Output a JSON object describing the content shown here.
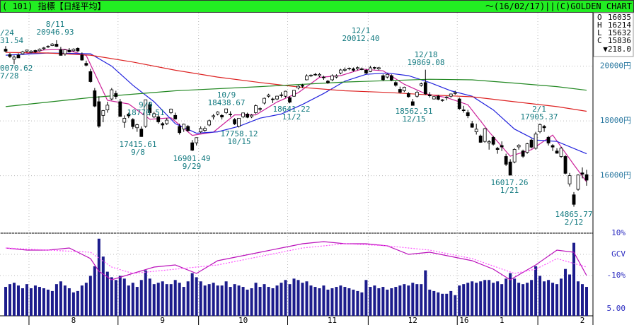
{
  "header": {
    "left": "( 101) 指標【日経平均】",
    "right": "～(16/02/17)||(C)GOLDEN CHART"
  },
  "chart_data": {
    "type": "candlestick",
    "ylim": [
      13900,
      21950
    ],
    "yticks": [
      {
        "value": 16000,
        "label": "16000円"
      },
      {
        "value": 18000,
        "label": "18000円"
      },
      {
        "value": 20000,
        "label": "20000円"
      }
    ],
    "grid": true,
    "month_starts": [
      6,
      27,
      46,
      67,
      86,
      107,
      126
    ],
    "month_labels": [
      "8",
      "9",
      "10",
      "11",
      "12",
      "1",
      "2"
    ],
    "year_label": "16",
    "summary": [
      {
        "label": "O",
        "value": 16035
      },
      {
        "label": "H",
        "value": 16214
      },
      {
        "label": "L",
        "value": 15632
      },
      {
        "label": "C",
        "value": 15836
      }
    ],
    "change": "▼218.0",
    "ohlc": [
      [
        20620,
        20731,
        20500,
        20544
      ],
      [
        20420,
        20480,
        20300,
        20350
      ],
      [
        20250,
        20390,
        20070,
        20328
      ],
      [
        20400,
        20470,
        20350,
        20302
      ],
      [
        20450,
        20560,
        20420,
        20522
      ],
      [
        20540,
        20600,
        20500,
        20585
      ],
      [
        20500,
        20580,
        20470,
        20548
      ],
      [
        20570,
        20600,
        20480,
        20520
      ],
      [
        20560,
        20650,
        20520,
        20614
      ],
      [
        20650,
        20700,
        20580,
        20664
      ],
      [
        20700,
        20760,
        20660,
        20724
      ],
      [
        20750,
        20840,
        20730,
        20808
      ],
      [
        20800,
        20946,
        20700,
        20720
      ],
      [
        20600,
        20700,
        20400,
        20392
      ],
      [
        20450,
        20600,
        20380,
        20595
      ],
      [
        20580,
        20660,
        20500,
        20519
      ],
      [
        20560,
        20650,
        20520,
        20620
      ],
      [
        20650,
        20680,
        20520,
        20554
      ],
      [
        20400,
        20500,
        20200,
        20222
      ],
      [
        20100,
        20200,
        19990,
        20033
      ],
      [
        19800,
        19900,
        19400,
        19435
      ],
      [
        19100,
        19200,
        18500,
        18540
      ],
      [
        18700,
        18900,
        17750,
        17806
      ],
      [
        18200,
        18400,
        17950,
        18376
      ],
      [
        18400,
        18700,
        18300,
        18574
      ],
      [
        18800,
        19200,
        18750,
        19136
      ],
      [
        19000,
        19100,
        18800,
        18890
      ],
      [
        18700,
        18800,
        18150,
        18165
      ],
      [
        17950,
        18200,
        17750,
        18095
      ],
      [
        18250,
        18300,
        18100,
        18182
      ],
      [
        18050,
        18100,
        17700,
        17792
      ],
      [
        17750,
        17900,
        17600,
        17860
      ],
      [
        17700,
        17800,
        17416,
        17427
      ],
      [
        17800,
        18771,
        17750,
        18770
      ],
      [
        18600,
        18700,
        18200,
        18299
      ],
      [
        18150,
        18330,
        18100,
        18264
      ],
      [
        18150,
        18250,
        17900,
        17965
      ],
      [
        17900,
        17950,
        17700,
        17849
      ],
      [
        17900,
        18100,
        17850,
        18026
      ],
      [
        18300,
        18450,
        18250,
        18432
      ],
      [
        18200,
        18300,
        18050,
        18070
      ],
      [
        17800,
        17900,
        17500,
        17571
      ],
      [
        17700,
        17900,
        17600,
        17880
      ],
      [
        17800,
        17850,
        17600,
        17645
      ],
      [
        17200,
        17300,
        16901,
        16930
      ],
      [
        17200,
        17400,
        17100,
        17388
      ],
      [
        17600,
        17800,
        17550,
        17722
      ],
      [
        17650,
        17800,
        17600,
        17725
      ],
      [
        17850,
        18050,
        17800,
        18005
      ],
      [
        18150,
        18250,
        18050,
        18186
      ],
      [
        18250,
        18350,
        18200,
        18322
      ],
      [
        18200,
        18250,
        18050,
        18141
      ],
      [
        18300,
        18439,
        18250,
        18438
      ],
      [
        18250,
        18350,
        18150,
        18234
      ],
      [
        18050,
        18100,
        17850,
        17891
      ],
      [
        17800,
        18100,
        17758,
        18096
      ],
      [
        18150,
        18300,
        18100,
        18291
      ],
      [
        18250,
        18300,
        18100,
        18131
      ],
      [
        18150,
        18250,
        18100,
        18207
      ],
      [
        18300,
        18600,
        18250,
        18554
      ],
      [
        18450,
        18500,
        18350,
        18435
      ],
      [
        18650,
        18850,
        18600,
        18825
      ],
      [
        18900,
        18990,
        18850,
        18947
      ],
      [
        18800,
        18850,
        18650,
        18777
      ],
      [
        18800,
        18920,
        18750,
        18903
      ],
      [
        18950,
        19050,
        18850,
        18935
      ],
      [
        18900,
        19100,
        18850,
        19083
      ],
      [
        18850,
        18900,
        18641,
        18683
      ],
      [
        18900,
        19130,
        18880,
        19116
      ],
      [
        19200,
        19300,
        19150,
        19265
      ],
      [
        19300,
        19350,
        19200,
        19265
      ],
      [
        19500,
        19700,
        19480,
        19642
      ],
      [
        19650,
        19700,
        19600,
        19671
      ],
      [
        19700,
        19750,
        19650,
        19697
      ],
      [
        19650,
        19750,
        19600,
        19697
      ],
      [
        19600,
        19650,
        19500,
        19596
      ],
      [
        19450,
        19500,
        19350,
        19393
      ],
      [
        19500,
        19700,
        19450,
        19649
      ],
      [
        19600,
        19700,
        19550,
        19649
      ],
      [
        19750,
        19900,
        19700,
        19859
      ],
      [
        19850,
        19950,
        19800,
        19879
      ],
      [
        19900,
        19950,
        19850,
        19924
      ],
      [
        19900,
        19950,
        19800,
        19847
      ],
      [
        19900,
        19990,
        19850,
        19944
      ],
      [
        19900,
        19950,
        19850,
        19883
      ],
      [
        19850,
        19900,
        19700,
        19747
      ],
      [
        19800,
        20012,
        19780,
        19938
      ],
      [
        19950,
        19980,
        19880,
        19939
      ],
      [
        19900,
        19970,
        19850,
        19940
      ],
      [
        19650,
        19700,
        19450,
        19504
      ],
      [
        19600,
        19720,
        19550,
        19698
      ],
      [
        19650,
        19700,
        19450,
        19492
      ],
      [
        19400,
        19450,
        19250,
        19301
      ],
      [
        19150,
        19250,
        19000,
        19046
      ],
      [
        19100,
        19250,
        19050,
        19230
      ],
      [
        19000,
        19050,
        18850,
        18883
      ],
      [
        18700,
        18800,
        18562,
        18565
      ],
      [
        18900,
        19100,
        18850,
        19049
      ],
      [
        19300,
        19400,
        19250,
        19353
      ],
      [
        19400,
        19869,
        18950,
        18986
      ],
      [
        18950,
        19050,
        18850,
        18916
      ],
      [
        18800,
        18900,
        18780,
        18886
      ],
      [
        18900,
        18950,
        18750,
        18789
      ],
      [
        18750,
        18800,
        18700,
        18769
      ],
      [
        18850,
        18900,
        18750,
        18873
      ],
      [
        18900,
        19000,
        18850,
        18982
      ],
      [
        19000,
        19100,
        18950,
        19033
      ],
      [
        18800,
        18850,
        18400,
        18450
      ],
      [
        18400,
        18550,
        18300,
        18374
      ],
      [
        18300,
        18400,
        18100,
        18191
      ],
      [
        17900,
        18000,
        17750,
        17767
      ],
      [
        17600,
        17900,
        17500,
        17697
      ],
      [
        17450,
        17500,
        17200,
        17218
      ],
      [
        17250,
        17750,
        17200,
        17715
      ],
      [
        17200,
        17300,
        16950,
        17240
      ],
      [
        17400,
        17450,
        17100,
        17147
      ],
      [
        17000,
        17050,
        16800,
        16955
      ],
      [
        17100,
        17250,
        16900,
        17048
      ],
      [
        16700,
        16800,
        16350,
        16416
      ],
      [
        16500,
        16600,
        16017,
        16017
      ],
      [
        16500,
        17000,
        16450,
        16958
      ],
      [
        17050,
        17150,
        16950,
        17110
      ],
      [
        16900,
        16950,
        16650,
        16708
      ],
      [
        16850,
        17200,
        16800,
        17163
      ],
      [
        17300,
        17350,
        17000,
        17041
      ],
      [
        17000,
        17600,
        16950,
        17518
      ],
      [
        17600,
        17905,
        17550,
        17865
      ],
      [
        17800,
        17850,
        17600,
        17750
      ],
      [
        17400,
        17450,
        17100,
        17191
      ],
      [
        17100,
        17150,
        16900,
        17044
      ],
      [
        16900,
        17000,
        16800,
        16819
      ],
      [
        16700,
        17050,
        16650,
        17004
      ],
      [
        16700,
        16750,
        16050,
        16085
      ],
      [
        15700,
        16100,
        15600,
        16000
      ],
      [
        15300,
        15400,
        14866,
        14952
      ],
      [
        15500,
        16050,
        15450,
        16022
      ],
      [
        16100,
        16300,
        15900,
        16054
      ],
      [
        16035,
        16214,
        15632,
        15836
      ]
    ],
    "lines": [
      {
        "color": "#cc2299",
        "x": [
          4,
          9,
          14,
          19,
          24,
          29,
          34,
          39,
          44,
          49,
          54,
          59,
          64,
          69,
          74,
          79,
          84,
          89,
          94,
          99,
          104,
          109,
          114,
          119,
          124,
          129,
          134,
          137
        ],
        "values": [
          20420,
          20590,
          20610,
          20390,
          18750,
          18620,
          18060,
          18110,
          17470,
          17590,
          18220,
          18220,
          18690,
          19030,
          19590,
          19650,
          19890,
          19830,
          19340,
          18990,
          18850,
          18590,
          17600,
          16710,
          16950,
          17480,
          16400,
          15770
        ]
      },
      {
        "color": "#2222dd",
        "x": [
          0,
          10,
          20,
          25,
          30,
          35,
          40,
          45,
          50,
          55,
          60,
          65,
          70,
          75,
          80,
          85,
          90,
          95,
          100,
          105,
          110,
          115,
          120,
          125,
          130,
          137
        ],
        "values": [
          20400,
          20480,
          20450,
          20000,
          19300,
          18700,
          17900,
          17550,
          17600,
          17800,
          18100,
          18250,
          18600,
          19000,
          19450,
          19700,
          19750,
          19650,
          19400,
          19100,
          18900,
          18400,
          17700,
          17300,
          17250,
          16800
        ]
      },
      {
        "color": "#dd2222",
        "x": [
          0,
          10,
          20,
          30,
          40,
          50,
          60,
          70,
          80,
          90,
          100,
          110,
          120,
          130,
          137
        ],
        "values": [
          20500,
          20480,
          20400,
          20150,
          19850,
          19600,
          19400,
          19220,
          19100,
          19040,
          18950,
          18880,
          18700,
          18520,
          18350
        ]
      },
      {
        "color": "#228822",
        "x": [
          0,
          20,
          40,
          60,
          80,
          100,
          110,
          120,
          130,
          137
        ],
        "values": [
          18520,
          18850,
          19100,
          19250,
          19420,
          19520,
          19500,
          19380,
          19250,
          19120
        ]
      }
    ],
    "volume": {
      "color": "#1c1c8c",
      "ylim": [
        0,
        6
      ],
      "label": "5.00",
      "values": [
        2.1,
        2.3,
        2.4,
        2.2,
        2.0,
        2.3,
        2.0,
        2.2,
        2.1,
        2.0,
        1.9,
        1.8,
        2.3,
        2.5,
        2.2,
        2.0,
        1.7,
        1.8,
        2.2,
        2.4,
        2.9,
        3.6,
        5.6,
        4.3,
        3.2,
        2.8,
        2.6,
        2.9,
        2.7,
        2.2,
        2.4,
        2.1,
        2.6,
        3.3,
        2.7,
        2.3,
        2.4,
        2.5,
        2.3,
        2.3,
        2.6,
        2.4,
        2.1,
        2.5,
        3.1,
        2.8,
        2.5,
        2.2,
        2.3,
        2.4,
        2.2,
        2.2,
        2.5,
        2.1,
        2.3,
        2.2,
        2.1,
        1.9,
        2.0,
        2.4,
        2.1,
        2.3,
        2.1,
        2.0,
        2.2,
        2.4,
        2.6,
        2.3,
        2.7,
        2.6,
        2.4,
        2.5,
        2.2,
        2.1,
        2.0,
        2.2,
        1.9,
        2.0,
        2.1,
        2.2,
        2.1,
        2.0,
        1.9,
        1.8,
        1.7,
        2.6,
        2.1,
        2.2,
        2.0,
        2.1,
        1.9,
        2.0,
        2.1,
        2.2,
        2.3,
        2.2,
        2.4,
        2.3,
        2.3,
        3.3,
        1.9,
        1.8,
        1.7,
        1.6,
        1.6,
        1.8,
        1.5,
        2.2,
        2.3,
        2.4,
        2.5,
        2.4,
        2.5,
        2.6,
        2.6,
        2.4,
        2.5,
        2.3,
        2.7,
        3.1,
        2.7,
        2.4,
        2.3,
        2.4,
        2.6,
        3.6,
        2.9,
        2.5,
        2.6,
        2.4,
        2.3,
        2.7,
        3.4,
        3.0,
        5.3,
        2.5,
        2.3,
        2.1
      ]
    },
    "gcv": {
      "ylim": [
        -29,
        10
      ],
      "yticks": [
        {
          "value": 10,
          "label": "10%"
        },
        {
          "value": 0,
          "label": "GCV"
        },
        {
          "value": -10,
          "label": "-10%"
        }
      ],
      "series": [
        {
          "color": "#bb11bb",
          "dashed": false,
          "x": [
            0,
            5,
            10,
            15,
            20,
            22,
            25,
            30,
            35,
            40,
            45,
            50,
            55,
            60,
            65,
            70,
            75,
            80,
            85,
            90,
            95,
            100,
            105,
            110,
            115,
            119,
            125,
            130,
            134,
            137
          ],
          "values": [
            3,
            2,
            2,
            3,
            -2,
            -8,
            -12,
            -9,
            -6,
            -5,
            -9,
            -3,
            -1,
            1,
            3,
            5,
            6,
            5,
            5,
            4,
            0,
            1,
            -1,
            -3,
            -7,
            -12,
            -5,
            2,
            1,
            -10
          ]
        },
        {
          "color": "#ff55ff",
          "dashed": true,
          "x": [
            0,
            10,
            20,
            25,
            30,
            40,
            50,
            60,
            70,
            80,
            90,
            100,
            110,
            120,
            125,
            130,
            137
          ],
          "values": [
            3,
            2,
            1,
            -6,
            -9,
            -7,
            -5,
            -1,
            3,
            5,
            4,
            2,
            -2,
            -9,
            -7,
            -2,
            -6
          ]
        }
      ]
    },
    "annotations": [
      [
        "/24",
        "31.54"
      ],
      [
        "8/11",
        "20946.93"
      ],
      [
        "0070.62",
        "7/28"
      ],
      [
        "9/9",
        "18770.51"
      ],
      [
        "10/9",
        "18438.67"
      ],
      [
        "17415.61",
        "9/8"
      ],
      [
        "16901.49",
        "9/29"
      ],
      [
        "17758.12",
        "10/15"
      ],
      [
        "18641.22",
        "11/2"
      ],
      [
        "12/1",
        "20012.40"
      ],
      [
        "12/18",
        "19869.08"
      ],
      [
        "18562.51",
        "12/15"
      ],
      [
        "2/1",
        "17905.37"
      ],
      [
        "16017.26",
        "1/21"
      ],
      [
        "14865.77",
        "2/12"
      ]
    ]
  }
}
